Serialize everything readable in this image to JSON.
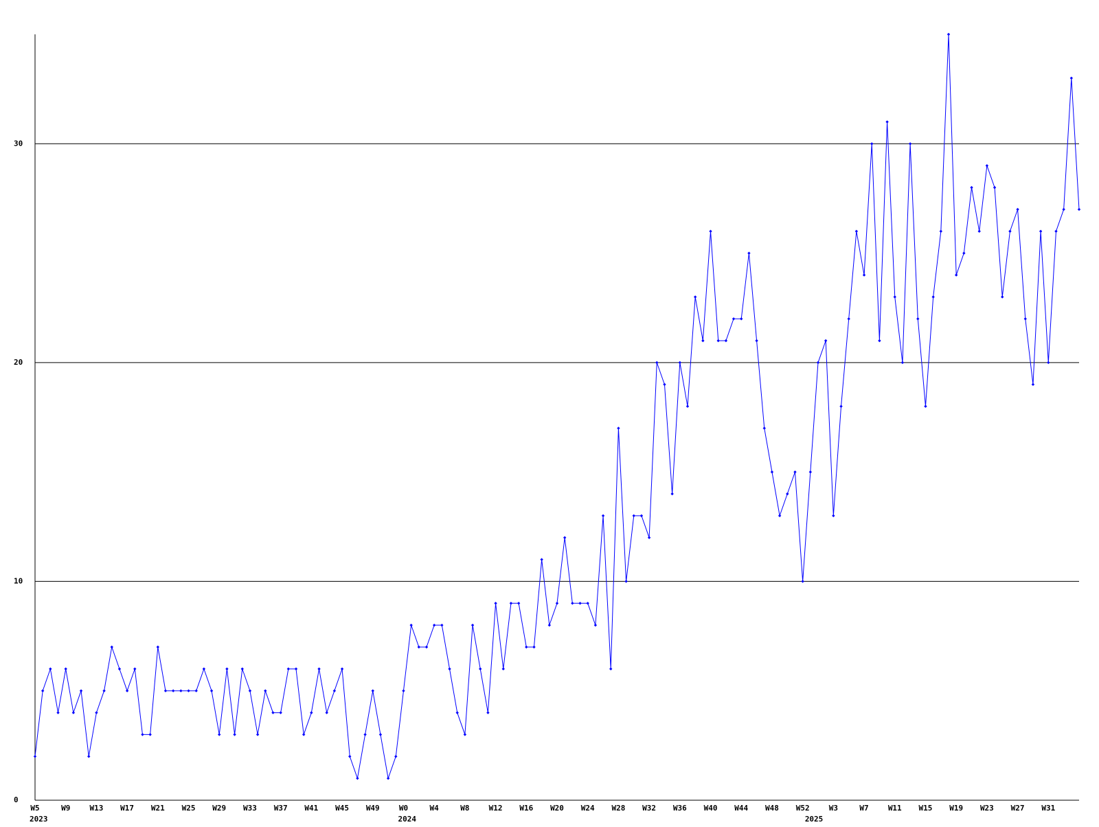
{
  "chart_data": {
    "type": "line",
    "categories": [
      "W5",
      null,
      null,
      null,
      "W9",
      null,
      null,
      null,
      "W13",
      null,
      null,
      null,
      "W17",
      null,
      null,
      null,
      "W21",
      null,
      null,
      null,
      "W25",
      null,
      null,
      null,
      "W29",
      null,
      null,
      null,
      "W33",
      null,
      null,
      null,
      "W37",
      null,
      null,
      null,
      "W41",
      null,
      null,
      null,
      "W45",
      null,
      null,
      null,
      "W49",
      null,
      null,
      null,
      "W0",
      null,
      null,
      null,
      "W4",
      null,
      null,
      null,
      "W8",
      null,
      null,
      null,
      "W12",
      null,
      null,
      null,
      "W16",
      null,
      null,
      null,
      "W20",
      null,
      null,
      null,
      "W24",
      null,
      null,
      null,
      "W28",
      null,
      null,
      null,
      "W32",
      null,
      null,
      null,
      "W36",
      null,
      null,
      null,
      "W40",
      null,
      null,
      null,
      "W44",
      null,
      null,
      null,
      "W48",
      null,
      null,
      null,
      "W52",
      null,
      null,
      null,
      "W3",
      null,
      null,
      null,
      "W7",
      null,
      null,
      null,
      "W11",
      null,
      null,
      null,
      "W15",
      null,
      null,
      null,
      "W19",
      null,
      null,
      null,
      "W23",
      null,
      null,
      null,
      "W27",
      null,
      null,
      null,
      "W31",
      null,
      null,
      null,
      null
    ],
    "category_years": [
      "2023",
      null,
      null,
      null,
      null,
      null,
      null,
      null,
      null,
      null,
      null,
      null,
      null,
      null,
      null,
      null,
      null,
      null,
      null,
      null,
      null,
      null,
      null,
      null,
      null,
      null,
      null,
      null,
      null,
      null,
      null,
      null,
      null,
      null,
      null,
      null,
      null,
      null,
      null,
      null,
      null,
      null,
      null,
      null,
      null,
      null,
      null,
      null,
      "2024",
      null,
      null,
      null,
      null,
      null,
      null,
      null,
      null,
      null,
      null,
      null,
      null,
      null,
      null,
      null,
      null,
      null,
      null,
      null,
      null,
      null,
      null,
      null,
      null,
      null,
      null,
      null,
      null,
      null,
      null,
      null,
      null,
      null,
      null,
      null,
      null,
      null,
      null,
      null,
      null,
      null,
      null,
      null,
      null,
      null,
      null,
      null,
      null,
      null,
      null,
      null,
      null,
      "2025",
      null,
      null,
      null,
      null,
      null,
      null,
      null,
      null,
      null,
      null,
      null,
      null,
      null,
      null,
      null,
      null,
      null,
      null,
      null,
      null,
      null,
      null,
      null,
      null,
      null,
      null,
      null,
      null,
      null,
      null,
      null,
      null,
      null,
      null,
      null
    ],
    "series": [
      {
        "color": "#0000ff",
        "values": [
          2,
          5,
          6,
          4,
          6,
          4,
          5,
          2,
          4,
          5,
          7,
          6,
          5,
          6,
          3,
          3,
          7,
          5,
          5,
          5,
          5,
          5,
          6,
          5,
          3,
          6,
          3,
          6,
          5,
          3,
          5,
          4,
          4,
          6,
          6,
          3,
          4,
          6,
          4,
          5,
          6,
          2,
          1,
          3,
          5,
          3,
          1,
          2,
          5,
          8,
          7,
          7,
          8,
          8,
          6,
          4,
          3,
          8,
          6,
          4,
          9,
          6,
          9,
          9,
          7,
          7,
          11,
          8,
          9,
          12,
          9,
          9,
          9,
          8,
          13,
          6,
          17,
          10,
          13,
          13,
          12,
          20,
          19,
          14,
          20,
          18,
          23,
          21,
          26,
          21,
          21,
          22,
          22,
          25,
          21,
          17,
          15,
          13,
          14,
          15,
          10,
          15,
          20,
          21,
          13,
          18,
          22,
          26,
          24,
          30,
          21,
          31,
          23,
          20,
          30,
          22,
          18,
          23,
          26,
          35,
          24,
          25,
          28,
          26,
          29,
          28,
          23,
          26,
          27,
          22,
          19,
          26,
          20,
          26,
          27,
          33,
          27
        ]
      }
    ],
    "ylim": [
      0,
      35
    ],
    "yticks": [
      0,
      10,
      20,
      30
    ],
    "grid": true
  }
}
